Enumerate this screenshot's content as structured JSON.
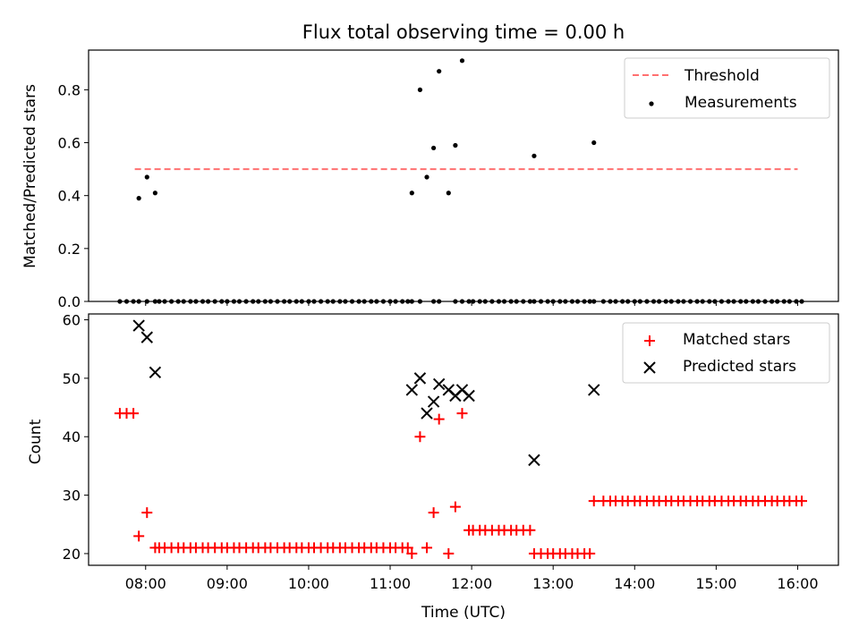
{
  "figure_title": "Flux total observing time = 0.00 h",
  "xlabel": "Time (UTC)",
  "colors": {
    "threshold": "#ff7070",
    "measurements": "#000000",
    "matched": "#ff0000",
    "predicted": "#000000"
  },
  "chart_data": [
    {
      "type": "scatter",
      "title": "Flux total observing time = 0.00 h",
      "xlabel": "",
      "ylabel": "Matched/Predicted stars",
      "xlim": [
        "07:18",
        "16:30"
      ],
      "ylim": [
        0,
        0.95
      ],
      "xticks": [
        "08:00",
        "09:00",
        "10:00",
        "11:00",
        "12:00",
        "13:00",
        "14:00",
        "15:00",
        "16:00"
      ],
      "yticks": [
        "0.0",
        "0.2",
        "0.4",
        "0.6",
        "0.8"
      ],
      "legend": "upper right",
      "grid": false,
      "series": [
        {
          "name": "Threshold",
          "kind": "dashed-line",
          "x": [
            "07:52",
            "16:00"
          ],
          "y": [
            0.5,
            0.5
          ]
        },
        {
          "name": "Measurements",
          "kind": "points",
          "x": [
            "07:41",
            "07:46",
            "07:51",
            "07:55",
            "08:01",
            "08:07",
            "08:10",
            "08:14",
            "08:19",
            "08:24",
            "08:28",
            "08:33",
            "08:37",
            "08:42",
            "08:46",
            "08:51",
            "08:56",
            "09:00",
            "09:05",
            "09:09",
            "09:14",
            "09:19",
            "09:23",
            "09:28",
            "09:32",
            "09:37",
            "09:42",
            "09:46",
            "09:51",
            "09:55",
            "10:00",
            "10:04",
            "10:09",
            "10:14",
            "10:18",
            "10:23",
            "10:27",
            "10:32",
            "10:37",
            "10:41",
            "10:46",
            "10:50",
            "10:55",
            "11:00",
            "11:04",
            "11:09",
            "11:13",
            "11:16",
            "11:22",
            "11:32",
            "11:36",
            "11:48",
            "11:53",
            "11:58",
            "12:01",
            "12:06",
            "12:10",
            "12:15",
            "12:20",
            "12:24",
            "12:29",
            "12:33",
            "12:38",
            "12:43",
            "12:46",
            "12:51",
            "12:56",
            "13:00",
            "13:05",
            "13:09",
            "13:14",
            "13:18",
            "13:23",
            "13:27",
            "13:30",
            "13:37",
            "13:42",
            "13:46",
            "13:51",
            "13:55",
            "14:00",
            "14:04",
            "14:09",
            "14:14",
            "14:18",
            "14:23",
            "14:27",
            "14:32",
            "14:36",
            "14:41",
            "14:46",
            "14:50",
            "14:55",
            "14:59",
            "15:04",
            "15:09",
            "15:13",
            "15:18",
            "15:22",
            "15:27",
            "15:31",
            "15:36",
            "15:41",
            "15:45",
            "15:50",
            "15:54",
            "15:59",
            "16:03",
            "07:55",
            "08:01",
            "08:07",
            "11:16",
            "11:22",
            "11:27",
            "11:32",
            "11:36",
            "11:43",
            "11:48",
            "11:53",
            "12:46",
            "13:30"
          ],
          "y": [
            0,
            0,
            0,
            0,
            0,
            0,
            0,
            0,
            0,
            0,
            0,
            0,
            0,
            0,
            0,
            0,
            0,
            0,
            0,
            0,
            0,
            0,
            0,
            0,
            0,
            0,
            0,
            0,
            0,
            0,
            0,
            0,
            0,
            0,
            0,
            0,
            0,
            0,
            0,
            0,
            0,
            0,
            0,
            0,
            0,
            0,
            0,
            0,
            0,
            0,
            0,
            0,
            0,
            0,
            0,
            0,
            0,
            0,
            0,
            0,
            0,
            0,
            0,
            0,
            0,
            0,
            0,
            0,
            0,
            0,
            0,
            0,
            0,
            0,
            0,
            0,
            0,
            0,
            0,
            0,
            0,
            0,
            0,
            0,
            0,
            0,
            0,
            0,
            0,
            0,
            0,
            0,
            0,
            0,
            0,
            0,
            0,
            0,
            0,
            0,
            0,
            0,
            0,
            0,
            0,
            0,
            0,
            0,
            0.39,
            0.47,
            0.41,
            0.41,
            0.8,
            0.47,
            0.58,
            0.87,
            0.41,
            0.59,
            0.91,
            0.55,
            0.6
          ]
        }
      ]
    },
    {
      "type": "scatter",
      "title": "",
      "xlabel": "Time (UTC)",
      "ylabel": "Count",
      "xlim": [
        "07:18",
        "16:30"
      ],
      "ylim": [
        18,
        61
      ],
      "xticks": [
        "08:00",
        "09:00",
        "10:00",
        "11:00",
        "12:00",
        "13:00",
        "14:00",
        "15:00",
        "16:00"
      ],
      "yticks": [
        "20",
        "30",
        "40",
        "50",
        "60"
      ],
      "legend": "upper right",
      "grid": false,
      "series": [
        {
          "name": "Matched stars",
          "marker": "+",
          "x": [
            "07:41",
            "07:46",
            "07:51",
            "07:55",
            "08:01",
            "08:07",
            "08:10",
            "08:14",
            "08:19",
            "08:24",
            "08:28",
            "08:33",
            "08:37",
            "08:42",
            "08:46",
            "08:51",
            "08:56",
            "09:00",
            "09:05",
            "09:09",
            "09:14",
            "09:19",
            "09:23",
            "09:28",
            "09:32",
            "09:37",
            "09:42",
            "09:46",
            "09:51",
            "09:55",
            "10:00",
            "10:04",
            "10:09",
            "10:14",
            "10:18",
            "10:23",
            "10:27",
            "10:32",
            "10:37",
            "10:41",
            "10:46",
            "10:50",
            "10:55",
            "11:00",
            "11:04",
            "11:09",
            "11:13",
            "11:16",
            "11:22",
            "11:27",
            "11:32",
            "11:36",
            "11:43",
            "11:48",
            "11:53",
            "11:58",
            "12:01",
            "12:06",
            "12:10",
            "12:15",
            "12:20",
            "12:24",
            "12:29",
            "12:33",
            "12:38",
            "12:43",
            "12:46",
            "12:51",
            "12:56",
            "13:00",
            "13:05",
            "13:09",
            "13:14",
            "13:18",
            "13:23",
            "13:27",
            "13:30",
            "13:37",
            "13:42",
            "13:46",
            "13:51",
            "13:55",
            "14:00",
            "14:04",
            "14:09",
            "14:14",
            "14:18",
            "14:23",
            "14:27",
            "14:32",
            "14:36",
            "14:41",
            "14:46",
            "14:50",
            "14:55",
            "14:59",
            "15:04",
            "15:09",
            "15:13",
            "15:18",
            "15:22",
            "15:27",
            "15:31",
            "15:36",
            "15:41",
            "15:45",
            "15:50",
            "15:54",
            "15:59",
            "16:03"
          ],
          "y": [
            44,
            44,
            44,
            23,
            27,
            21,
            21,
            21,
            21,
            21,
            21,
            21,
            21,
            21,
            21,
            21,
            21,
            21,
            21,
            21,
            21,
            21,
            21,
            21,
            21,
            21,
            21,
            21,
            21,
            21,
            21,
            21,
            21,
            21,
            21,
            21,
            21,
            21,
            21,
            21,
            21,
            21,
            21,
            21,
            21,
            21,
            21,
            20,
            40,
            21,
            27,
            43,
            20,
            28,
            44,
            24,
            24,
            24,
            24,
            24,
            24,
            24,
            24,
            24,
            24,
            24,
            20,
            20,
            20,
            20,
            20,
            20,
            20,
            20,
            20,
            20,
            29,
            29,
            29,
            29,
            29,
            29,
            29,
            29,
            29,
            29,
            29,
            29,
            29,
            29,
            29,
            29,
            29,
            29,
            29,
            29,
            29,
            29,
            29,
            29,
            29,
            29,
            29,
            29,
            29,
            29,
            29,
            29,
            29,
            29
          ]
        },
        {
          "name": "Predicted stars",
          "marker": "x",
          "x": [
            "07:55",
            "08:01",
            "08:07",
            "11:16",
            "11:22",
            "11:27",
            "11:32",
            "11:36",
            "11:43",
            "11:48",
            "11:53",
            "11:58",
            "12:46",
            "13:30"
          ],
          "y": [
            59,
            57,
            51,
            48,
            50,
            44,
            46,
            49,
            48,
            47,
            48,
            47,
            36,
            48
          ]
        }
      ]
    }
  ]
}
